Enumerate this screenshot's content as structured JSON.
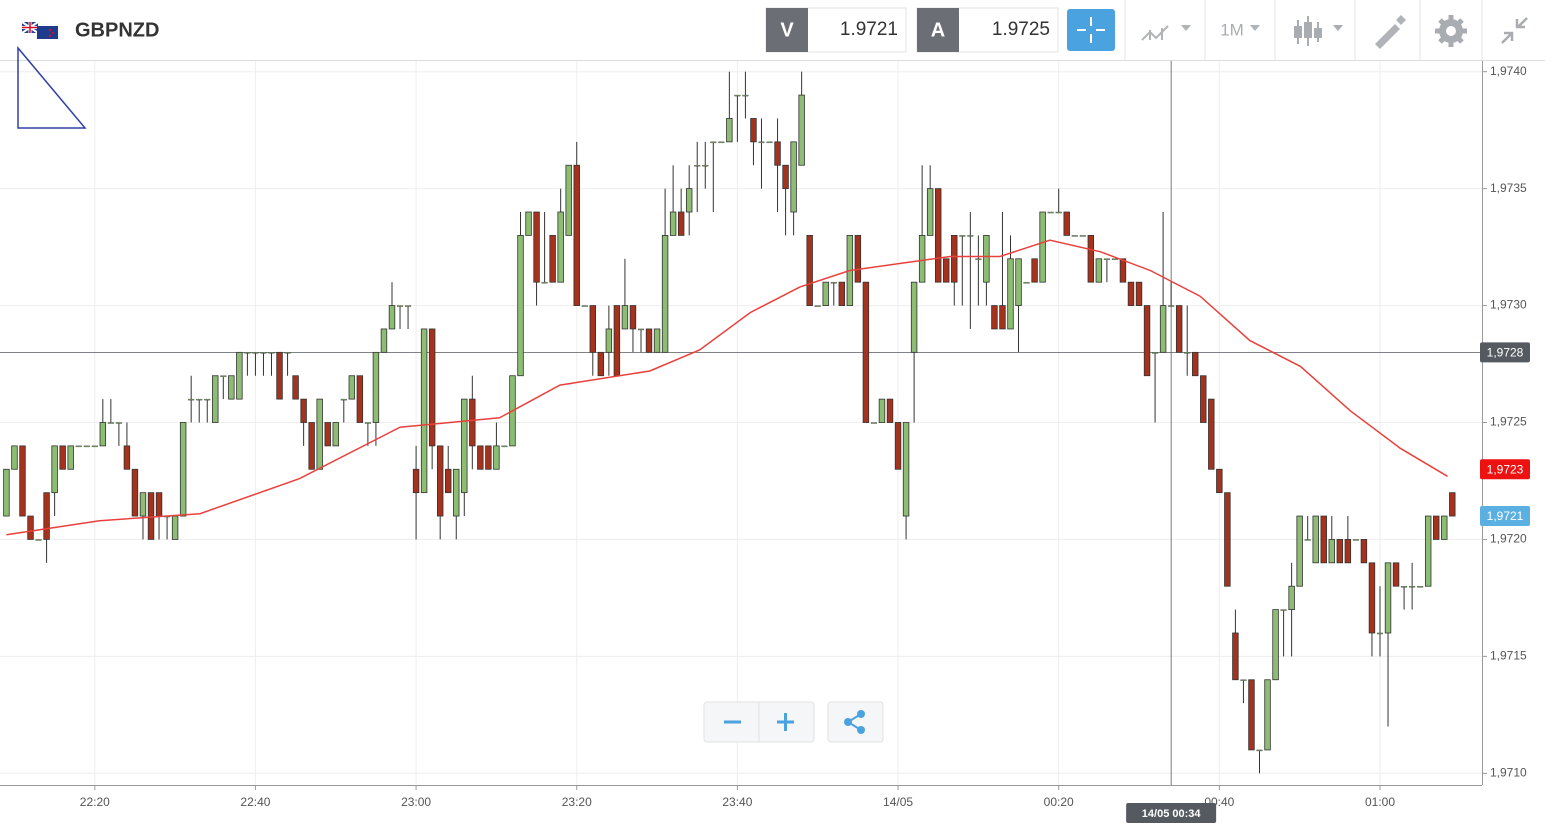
{
  "header": {
    "symbol": "GBPNZD",
    "sell_label": "V",
    "sell_price": "1.9721",
    "buy_label": "A",
    "buy_price": "1.9725",
    "timeframe": "1M"
  },
  "chart_data": {
    "type": "candlestick",
    "title": "GBPNZD",
    "up_color": "#8cbd72",
    "down_color": "#a5321d",
    "open": [
      1.9721,
      1.9723,
      1.9724,
      1.9721,
      1.972,
      1.9722,
      1.9722,
      1.9724,
      1.9723,
      1.9724,
      1.9724,
      1.9724,
      1.9724,
      1.9725,
      1.9725,
      1.9724,
      1.9723,
      1.9721,
      1.9722,
      1.9722,
      1.9721,
      1.972,
      1.9721,
      1.9726,
      1.9726,
      1.9726,
      1.9725,
      1.9727,
      1.9726,
      1.9726,
      1.9728,
      1.9728,
      1.9728,
      1.9728,
      1.9728,
      1.9728,
      1.9727,
      1.9726,
      1.9725,
      1.9723,
      1.9725,
      1.9724,
      1.9726,
      1.9726,
      1.9727,
      1.9725,
      1.9725,
      1.9728,
      1.9729,
      1.973,
      1.973,
      1.9723,
      1.9722,
      1.9729,
      1.9724,
      1.9723,
      1.9721,
      1.9722,
      1.9726,
      1.9724,
      1.9724,
      1.9723,
      1.9724,
      1.9724,
      1.9727,
      1.9733,
      1.9734,
      1.9731,
      1.9733,
      1.9731,
      1.9733,
      1.9736,
      1.973,
      1.973,
      1.9728,
      1.9728,
      1.973,
      1.9729,
      1.973,
      1.9729,
      1.9729,
      1.9728,
      1.9728,
      1.9733,
      1.9734,
      1.9734,
      1.9736,
      1.9736,
      1.9737,
      1.9737,
      1.9737,
      1.9739,
      1.9739,
      1.9738,
      1.9737,
      1.9737,
      1.9737,
      1.9736,
      1.9734,
      1.9736,
      1.9733,
      1.973,
      1.973,
      1.9731,
      1.9731,
      1.973,
      1.9733,
      1.9731,
      1.9725,
      1.9725,
      1.9726,
      1.9725,
      1.9721,
      1.9728,
      1.9731,
      1.9733,
      1.9735,
      1.9732,
      1.9733,
      1.9733,
      1.9733,
      1.9732,
      1.9731,
      1.973,
      1.973,
      1.9729,
      1.973,
      1.9731,
      1.9732,
      1.9731,
      1.9734,
      1.9734,
      1.9734,
      1.9733,
      1.9733,
      1.9733,
      1.9731,
      1.9732,
      1.9732,
      1.9732,
      1.9731,
      1.9731,
      1.973,
      1.9728,
      1.9728,
      1.973,
      1.973,
      1.9728,
      1.9728,
      1.9727,
      1.9726,
      1.9723,
      1.9722,
      1.9716,
      1.9714,
      1.9714,
      1.9711,
      1.9711,
      1.9714,
      1.9717,
      1.9717,
      1.9718,
      1.972,
      1.9719,
      1.9721,
      1.9719,
      1.972,
      1.972,
      1.972,
      1.972,
      1.9719,
      1.9716,
      1.9716,
      1.9719,
      1.9718,
      1.9718,
      1.9718,
      1.9718,
      1.9721,
      1.972,
      1.9722
    ],
    "high": [
      1.9723,
      1.9724,
      1.9724,
      1.9721,
      1.972,
      1.9722,
      1.9724,
      1.9724,
      1.9724,
      1.9724,
      1.9724,
      1.9724,
      1.9726,
      1.9726,
      1.9725,
      1.9725,
      1.9723,
      1.9722,
      1.9722,
      1.9722,
      1.9721,
      1.9721,
      1.9725,
      1.9727,
      1.9726,
      1.9726,
      1.9727,
      1.9727,
      1.9727,
      1.9728,
      1.9728,
      1.9728,
      1.9728,
      1.9728,
      1.9728,
      1.9728,
      1.9727,
      1.9726,
      1.9725,
      1.9726,
      1.9725,
      1.9725,
      1.9726,
      1.9727,
      1.9727,
      1.9725,
      1.9728,
      1.9729,
      1.9731,
      1.973,
      1.973,
      1.9724,
      1.9729,
      1.9729,
      1.9724,
      1.9724,
      1.9723,
      1.9726,
      1.9727,
      1.9724,
      1.9724,
      1.9725,
      1.9724,
      1.9727,
      1.9734,
      1.9734,
      1.9734,
      1.9734,
      1.9733,
      1.9735,
      1.9736,
      1.9737,
      1.973,
      1.973,
      1.9728,
      1.973,
      1.973,
      1.9732,
      1.973,
      1.9729,
      1.9729,
      1.9729,
      1.9735,
      1.9736,
      1.9735,
      1.9736,
      1.9737,
      1.9737,
      1.9737,
      1.9737,
      1.974,
      1.9739,
      1.974,
      1.9738,
      1.9738,
      1.9737,
      1.9738,
      1.9736,
      1.9737,
      1.974,
      1.9733,
      1.973,
      1.9731,
      1.9731,
      1.9731,
      1.9733,
      1.9733,
      1.9731,
      1.9725,
      1.9726,
      1.9726,
      1.9725,
      1.9725,
      1.9731,
      1.9736,
      1.9736,
      1.9735,
      1.9732,
      1.9733,
      1.9733,
      1.9734,
      1.9733,
      1.9733,
      1.973,
      1.9734,
      1.9733,
      1.9732,
      1.9731,
      1.9732,
      1.9734,
      1.9734,
      1.9735,
      1.9734,
      1.9733,
      1.9733,
      1.9733,
      1.9732,
      1.9732,
      1.9732,
      1.9732,
      1.9731,
      1.9731,
      1.973,
      1.9728,
      1.9734,
      1.9731,
      1.973,
      1.973,
      1.9728,
      1.9727,
      1.9726,
      1.9723,
      1.9722,
      1.9717,
      1.9714,
      1.9714,
      1.9711,
      1.9714,
      1.9717,
      1.9717,
      1.9719,
      1.9721,
      1.9721,
      1.9721,
      1.9721,
      1.9721,
      1.972,
      1.9721,
      1.972,
      1.972,
      1.9719,
      1.9718,
      1.9719,
      1.9719,
      1.9718,
      1.9719,
      1.9718,
      1.9721,
      1.9721,
      1.9721,
      1.9722
    ],
    "low": [
      1.9721,
      1.9723,
      1.9721,
      1.972,
      1.972,
      1.9719,
      1.9721,
      1.9723,
      1.9723,
      1.9724,
      1.9724,
      1.9724,
      1.9724,
      1.9725,
      1.9724,
      1.9723,
      1.9721,
      1.972,
      1.972,
      1.972,
      1.972,
      1.972,
      1.9721,
      1.9725,
      1.9725,
      1.9725,
      1.9725,
      1.9726,
      1.9726,
      1.9726,
      1.9727,
      1.9727,
      1.9727,
      1.9727,
      1.9726,
      1.9727,
      1.9726,
      1.9724,
      1.9723,
      1.9723,
      1.9724,
      1.9724,
      1.9725,
      1.9726,
      1.9725,
      1.9724,
      1.9724,
      1.9728,
      1.9729,
      1.9729,
      1.9729,
      1.972,
      1.9722,
      1.9723,
      1.972,
      1.9722,
      1.972,
      1.9721,
      1.9723,
      1.9723,
      1.9723,
      1.9723,
      1.9724,
      1.9724,
      1.9727,
      1.9733,
      1.973,
      1.9731,
      1.9731,
      1.9731,
      1.9733,
      1.973,
      1.973,
      1.9727,
      1.9727,
      1.9727,
      1.9727,
      1.9729,
      1.9728,
      1.9728,
      1.9728,
      1.9728,
      1.9728,
      1.9733,
      1.9733,
      1.9733,
      1.9734,
      1.9735,
      1.9734,
      1.9737,
      1.9737,
      1.9737,
      1.9738,
      1.9736,
      1.9735,
      1.9737,
      1.9734,
      1.9733,
      1.9733,
      1.9736,
      1.973,
      1.973,
      1.973,
      1.973,
      1.973,
      1.973,
      1.9731,
      1.9725,
      1.9725,
      1.9725,
      1.9725,
      1.9723,
      1.972,
      1.9725,
      1.9731,
      1.9733,
      1.9731,
      1.9731,
      1.973,
      1.973,
      1.9729,
      1.973,
      1.973,
      1.9729,
      1.9729,
      1.9729,
      1.9728,
      1.9731,
      1.9731,
      1.9731,
      1.9734,
      1.9734,
      1.9733,
      1.9733,
      1.9733,
      1.9731,
      1.9731,
      1.9731,
      1.9732,
      1.9731,
      1.973,
      1.973,
      1.9727,
      1.9725,
      1.9728,
      1.973,
      1.9728,
      1.9727,
      1.9727,
      1.9725,
      1.9723,
      1.9722,
      1.9718,
      1.9714,
      1.9713,
      1.9711,
      1.971,
      1.9711,
      1.9714,
      1.9715,
      1.9715,
      1.9718,
      1.972,
      1.9719,
      1.9719,
      1.9719,
      1.9719,
      1.9719,
      1.972,
      1.9719,
      1.9715,
      1.9715,
      1.9712,
      1.9718,
      1.9717,
      1.9717,
      1.9718,
      1.9718,
      1.972,
      1.972,
      1.9721
    ],
    "close": [
      1.9723,
      1.9724,
      1.9721,
      1.972,
      1.972,
      1.972,
      1.9724,
      1.9723,
      1.9724,
      1.9724,
      1.9724,
      1.9724,
      1.9725,
      1.9725,
      1.9725,
      1.9723,
      1.9721,
      1.9722,
      1.972,
      1.9721,
      1.9721,
      1.9721,
      1.9725,
      1.9726,
      1.9726,
      1.9726,
      1.9727,
      1.9727,
      1.9727,
      1.9728,
      1.9728,
      1.9728,
      1.9728,
      1.9728,
      1.9726,
      1.9728,
      1.9726,
      1.9725,
      1.9723,
      1.9726,
      1.9724,
      1.9725,
      1.9726,
      1.9727,
      1.9725,
      1.9725,
      1.9728,
      1.9729,
      1.973,
      1.973,
      1.973,
      1.9722,
      1.9729,
      1.9724,
      1.9721,
      1.9722,
      1.9723,
      1.9726,
      1.9724,
      1.9723,
      1.9723,
      1.9724,
      1.9724,
      1.9727,
      1.9733,
      1.9734,
      1.9731,
      1.9731,
      1.9731,
      1.9734,
      1.9736,
      1.973,
      1.973,
      1.9728,
      1.9727,
      1.9729,
      1.9727,
      1.973,
      1.9729,
      1.9729,
      1.9728,
      1.9729,
      1.9733,
      1.9734,
      1.9733,
      1.9735,
      1.9736,
      1.9736,
      1.9737,
      1.9737,
      1.9738,
      1.9739,
      1.9739,
      1.9737,
      1.9737,
      1.9737,
      1.9736,
      1.9735,
      1.9737,
      1.9739,
      1.973,
      1.973,
      1.9731,
      1.9731,
      1.973,
      1.9733,
      1.9731,
      1.9725,
      1.9725,
      1.9726,
      1.9725,
      1.9723,
      1.9725,
      1.9731,
      1.9733,
      1.9735,
      1.9731,
      1.9731,
      1.9731,
      1.9733,
      1.9733,
      1.9732,
      1.9733,
      1.9729,
      1.9729,
      1.9732,
      1.9732,
      1.9731,
      1.9731,
      1.9734,
      1.9734,
      1.9734,
      1.9733,
      1.9733,
      1.9733,
      1.9731,
      1.9732,
      1.9732,
      1.9732,
      1.9731,
      1.973,
      1.973,
      1.9727,
      1.9728,
      1.973,
      1.973,
      1.9728,
      1.9728,
      1.9727,
      1.9725,
      1.9723,
      1.9722,
      1.9718,
      1.9714,
      1.9714,
      1.9711,
      1.9711,
      1.9714,
      1.9717,
      1.9717,
      1.9718,
      1.9721,
      1.972,
      1.9721,
      1.9719,
      1.972,
      1.9719,
      1.9719,
      1.972,
      1.9719,
      1.9716,
      1.9716,
      1.9719,
      1.9718,
      1.9718,
      1.9718,
      1.9718,
      1.9721,
      1.972,
      1.9721,
      1.9721
    ],
    "overlays": [
      {
        "color": "#e8413c",
        "x": [
          0,
          11.6,
          24.1,
          36.5,
          49.0,
          61.4,
          68.9,
          80.1,
          86.3,
          92.6,
          98.8,
          105.0,
          111.2,
          117.5,
          123.7,
          129.9,
          136.2,
          142.4,
          148.6,
          154.8,
          161.1,
          167.3,
          173.5,
          179.4
        ],
        "values": [
          1.97202,
          1.97208,
          1.97211,
          1.97226,
          1.97248,
          1.97252,
          1.97266,
          1.97272,
          1.97281,
          1.97297,
          1.97308,
          1.97315,
          1.97318,
          1.97321,
          1.97321,
          1.97328,
          1.97323,
          1.97315,
          1.97304,
          1.97285,
          1.97274,
          1.97255,
          1.97239,
          1.97227
        ]
      }
    ],
    "xlim": [
      -0.8,
      183.7
    ],
    "ylim": [
      1.97095,
      1.97405
    ],
    "xticks": [
      {
        "value": 11,
        "label": "22:20"
      },
      {
        "value": 31,
        "label": "22:40"
      },
      {
        "value": 51,
        "label": "23:00"
      },
      {
        "value": 71,
        "label": "23:20"
      },
      {
        "value": 91,
        "label": "23:40"
      },
      {
        "value": 111,
        "label": "14/05"
      },
      {
        "value": 131,
        "label": "00:20"
      },
      {
        "value": 151,
        "label": "00:40"
      },
      {
        "value": 171,
        "label": "01:00"
      }
    ],
    "yticks": [
      {
        "value": 1.974,
        "label": "1,9740"
      },
      {
        "value": 1.9735,
        "label": "1,9735"
      },
      {
        "value": 1.973,
        "label": "1,9730"
      },
      {
        "value": 1.9725,
        "label": "1,9725"
      },
      {
        "value": 1.972,
        "label": "1,9720"
      },
      {
        "value": 1.9715,
        "label": "1,9715"
      },
      {
        "value": 1.971,
        "label": "1,9710"
      }
    ],
    "grid": true,
    "crosshair": {
      "x": {
        "value": 145,
        "label": "14/05 00:34"
      },
      "y": {
        "value": 1.9728,
        "label": "1,9728"
      },
      "color": "#555a61"
    },
    "markers": [
      {
        "value": 1.9723,
        "label": "1,9723",
        "color": "#ee1111"
      },
      {
        "value": 1.9721,
        "label": "1,9721",
        "color": "#5ab0e0"
      }
    ]
  }
}
